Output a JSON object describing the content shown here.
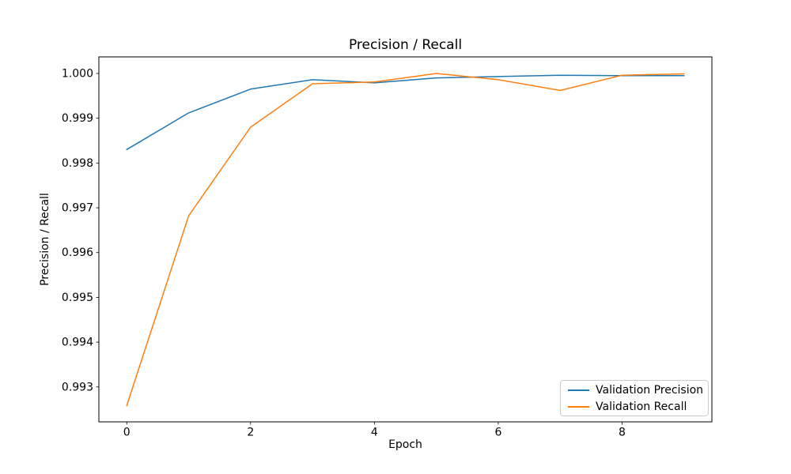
{
  "chart_data": {
    "type": "line",
    "title": "Precision / Recall",
    "xlabel": "Epoch",
    "ylabel": "Precision / Recall",
    "x": [
      0,
      1,
      2,
      3,
      4,
      5,
      6,
      7,
      8,
      9
    ],
    "series": [
      {
        "name": "Validation Precision",
        "color": "#1f77b4",
        "values": [
          0.9983,
          0.99912,
          0.99965,
          0.99986,
          0.99979,
          0.9999,
          0.99993,
          0.99996,
          0.99995,
          0.99995
        ]
      },
      {
        "name": "Validation Recall",
        "color": "#ff7f0e",
        "values": [
          0.99258,
          0.99682,
          0.9988,
          0.99977,
          0.99981,
          1.0,
          0.99986,
          0.99962,
          0.99996,
          0.99999
        ]
      }
    ],
    "xlim": [
      -0.45,
      9.45
    ],
    "ylim": [
      0.99222,
      1.00037
    ],
    "x_ticks": {
      "values": [
        0,
        2,
        4,
        6,
        8
      ],
      "labels": [
        "0",
        "2",
        "4",
        "6",
        "8"
      ]
    },
    "y_ticks": {
      "values": [
        0.993,
        0.994,
        0.995,
        0.996,
        0.997,
        0.998,
        0.999,
        1.0
      ],
      "labels": [
        "0.993",
        "0.994",
        "0.995",
        "0.996",
        "0.997",
        "0.998",
        "0.999",
        "1.000"
      ]
    },
    "grid": false,
    "legend": {
      "position": "lower right",
      "entries": [
        "Validation Precision",
        "Validation Recall"
      ]
    },
    "axis_color": "#000000",
    "background": "#ffffff"
  }
}
